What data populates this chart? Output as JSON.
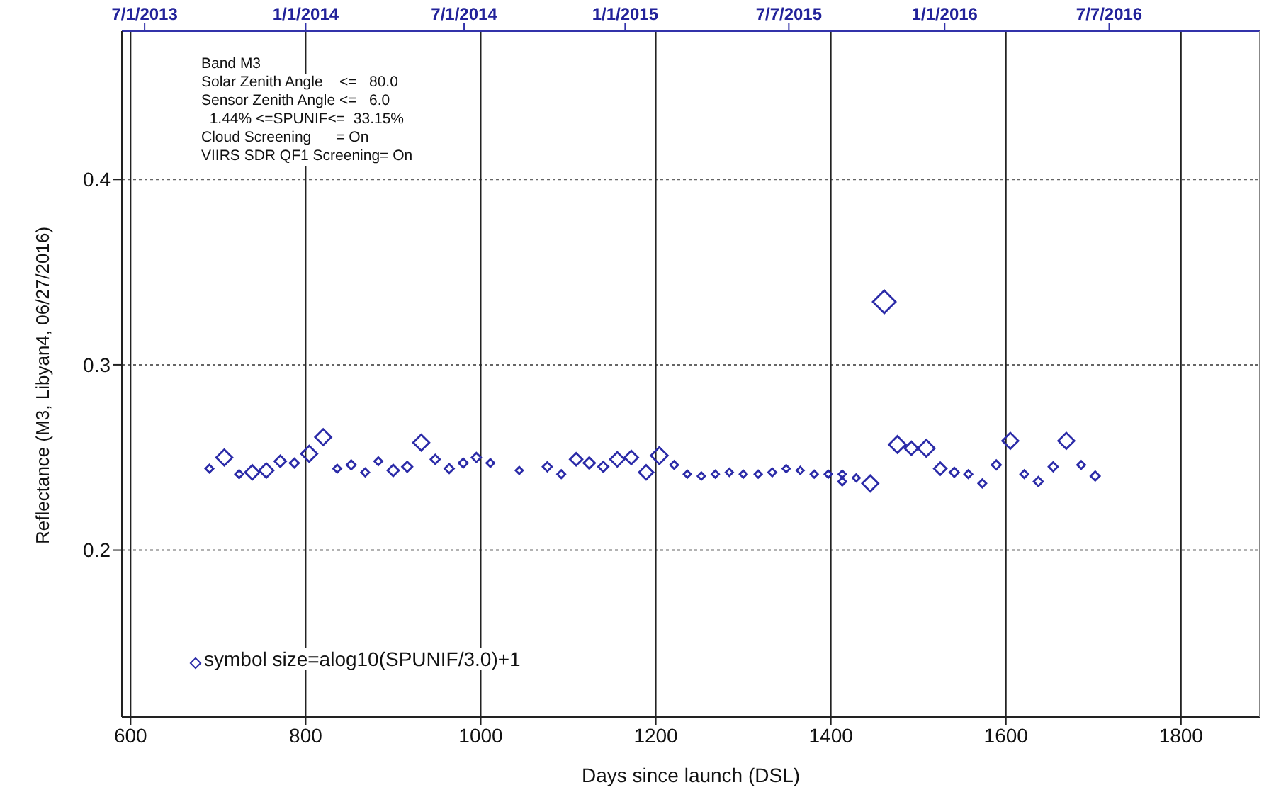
{
  "chart_data": {
    "type": "bubble",
    "xlabel": "Days since launch (DSL)",
    "ylabel": "Reflectance (M3, Libyan4, 06/27/2016)",
    "annotations": [
      "Band M3",
      "Solar Zenith Angle    <=   80.0",
      "Sensor Zenith Angle <=   6.0",
      "  1.44% <=SPUNIF<=  33.15%",
      "Cloud Screening      = On",
      "VIIRS SDR QF1 Screening= On",
      "symbol size=alog10(SPUNIF/3.0)+1"
    ],
    "xlim": [
      590,
      1890
    ],
    "xticks": [
      600,
      800,
      1000,
      1200,
      1400,
      1600,
      1800
    ],
    "x2lim": [
      "2013-06-05",
      "2016-12-26"
    ],
    "x2ticks": [
      {
        "value": "2013-07-01",
        "label": "7/1/2013"
      },
      {
        "value": "2014-01-01",
        "label": "1/1/2014"
      },
      {
        "value": "2014-07-01",
        "label": "7/1/2014"
      },
      {
        "value": "2015-01-01",
        "label": "1/1/2015"
      },
      {
        "value": "2015-07-07",
        "label": "7/7/2015"
      },
      {
        "value": "2016-01-01",
        "label": "1/1/2016"
      },
      {
        "value": "2016-07-07",
        "label": "7/7/2016"
      }
    ],
    "ylim": [
      0.11,
      0.48
    ],
    "yticks": [
      0.2,
      0.3,
      0.4
    ],
    "grid": true,
    "marker": "diamond",
    "series": [
      {
        "color": "#2b2ba8",
        "x": [
          690,
          707,
          724,
          739,
          755,
          771,
          787,
          804,
          820,
          836,
          852,
          868,
          883,
          900,
          916,
          932,
          948,
          964,
          980,
          995,
          1011,
          1044,
          1076,
          1092,
          1109,
          1124,
          1140,
          1156,
          1172,
          1189,
          1204,
          1221,
          1236,
          1252,
          1268,
          1284,
          1300,
          1317,
          1333,
          1349,
          1365,
          1381,
          1397,
          1413,
          1413,
          1429,
          1445,
          1461,
          1476,
          1492,
          1509,
          1525,
          1541,
          1557,
          1573,
          1589,
          1605,
          1621,
          1637,
          1654,
          1669,
          1686,
          1702
        ],
        "values": [
          0.244,
          0.25,
          0.241,
          0.242,
          0.243,
          0.248,
          0.247,
          0.252,
          0.261,
          0.244,
          0.246,
          0.242,
          0.248,
          0.243,
          0.245,
          0.258,
          0.249,
          0.244,
          0.247,
          0.25,
          0.247,
          0.243,
          0.245,
          0.241,
          0.249,
          0.247,
          0.245,
          0.249,
          0.25,
          0.242,
          0.251,
          0.246,
          0.241,
          0.24,
          0.241,
          0.242,
          0.241,
          0.241,
          0.242,
          0.244,
          0.243,
          0.241,
          0.241,
          0.241,
          0.237,
          0.239,
          0.236,
          0.334,
          0.257,
          0.255,
          0.255,
          0.244,
          0.242,
          0.241,
          0.236,
          0.246,
          0.259,
          0.241,
          0.237,
          0.245,
          0.259,
          0.246,
          0.24
        ],
        "sizes": [
          0.12,
          0.5,
          0.12,
          0.4,
          0.4,
          0.25,
          0.16,
          0.5,
          0.5,
          0.12,
          0.16,
          0.12,
          0.12,
          0.25,
          0.2,
          0.5,
          0.16,
          0.16,
          0.16,
          0.16,
          0.12,
          0.1,
          0.16,
          0.12,
          0.3,
          0.25,
          0.2,
          0.4,
          0.35,
          0.4,
          0.55,
          0.12,
          0.1,
          0.1,
          0.1,
          0.1,
          0.1,
          0.1,
          0.12,
          0.1,
          0.1,
          0.1,
          0.1,
          0.1,
          0.12,
          0.1,
          0.5,
          1,
          0.55,
          0.35,
          0.55,
          0.3,
          0.16,
          0.12,
          0.12,
          0.16,
          0.5,
          0.12,
          0.16,
          0.16,
          0.5,
          0.12,
          0.16
        ]
      }
    ]
  }
}
